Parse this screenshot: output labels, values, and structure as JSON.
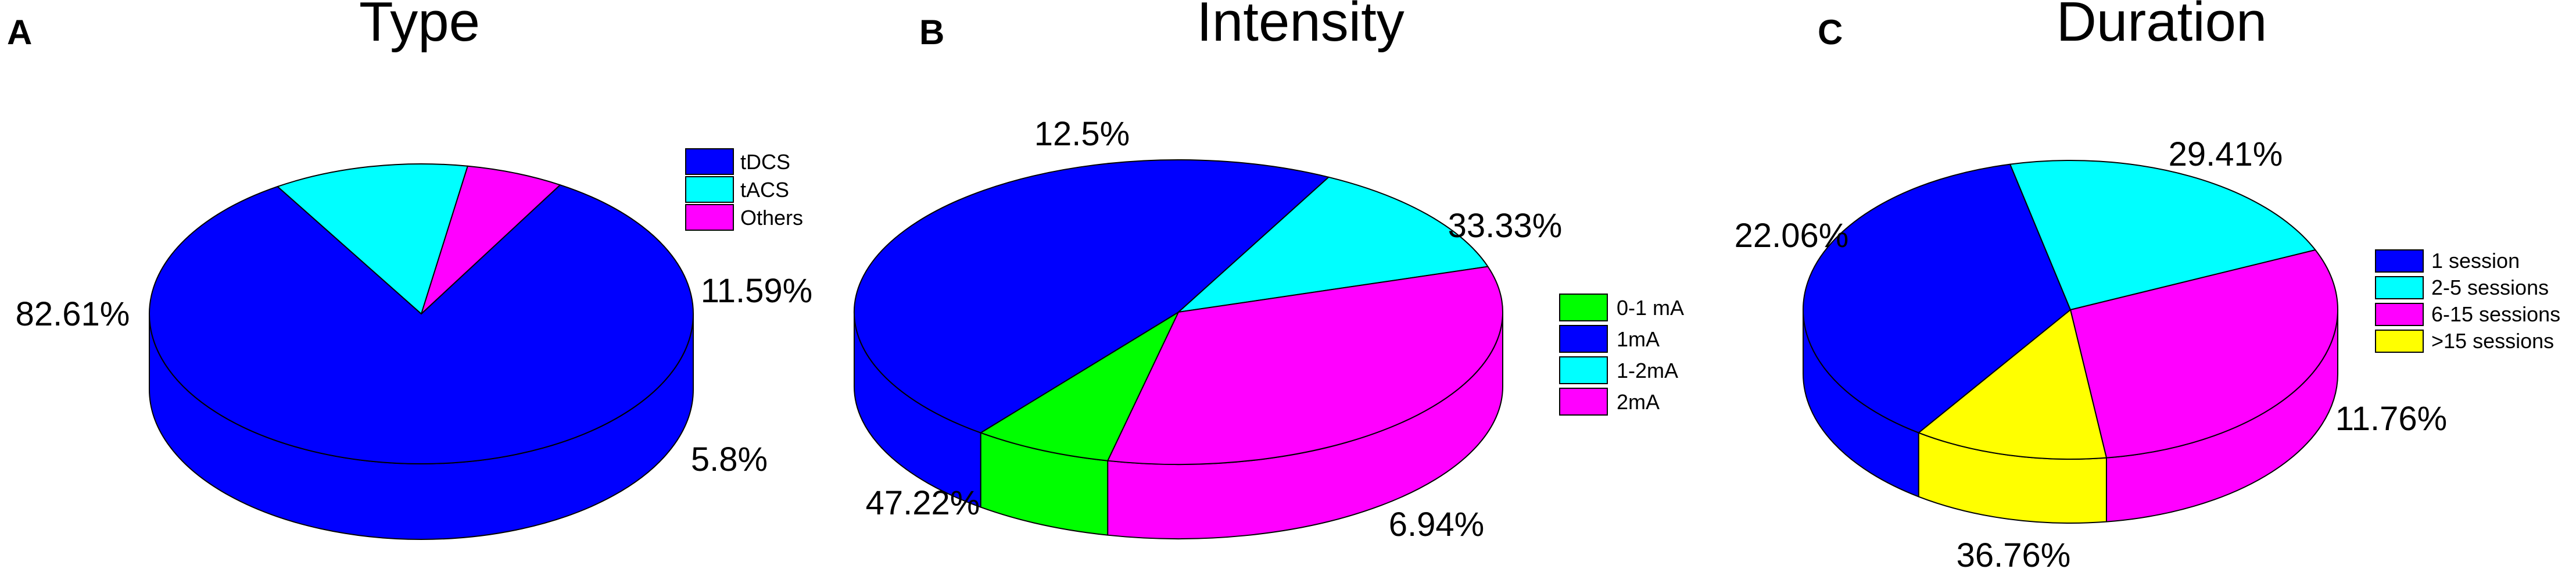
{
  "chart_data": [
    {
      "type": "pie",
      "panel": "A",
      "title": "Type",
      "slices": [
        {
          "label": "tDCS",
          "value": 82.61,
          "value_label": "82.61%",
          "color": "#0000FF"
        },
        {
          "label": "tACS",
          "value": 11.59,
          "value_label": "11.59%",
          "color": "#00FFFF"
        },
        {
          "label": "Others",
          "value": 5.8,
          "value_label": "5.8%",
          "color": "#FF00FF"
        }
      ],
      "legend": [
        "tDCS",
        "tACS",
        "Others"
      ]
    },
    {
      "type": "pie",
      "panel": "B",
      "title": "Intensity",
      "slices": [
        {
          "label": "0-1 mA",
          "value": 6.94,
          "value_label": "6.94%",
          "color": "#00FF00"
        },
        {
          "label": "1mA",
          "value": 47.22,
          "value_label": "47.22%",
          "color": "#0000FF"
        },
        {
          "label": "1-2mA",
          "value": 12.5,
          "value_label": "12.5%",
          "color": "#00FFFF"
        },
        {
          "label": "2mA",
          "value": 33.33,
          "value_label": "33.33%",
          "color": "#FF00FF"
        }
      ],
      "legend": [
        "0-1 mA",
        "1mA",
        "1-2mA",
        "2mA"
      ]
    },
    {
      "type": "pie",
      "panel": "C",
      "title": "Duration",
      "slices": [
        {
          "label": "1 session",
          "value": 36.76,
          "value_label": "36.76%",
          "color": "#0000FF"
        },
        {
          "label": "2-5 sessions",
          "value": 22.06,
          "value_label": "22.06%",
          "color": "#00FFFF"
        },
        {
          "label": "6-15 sessions",
          "value": 29.41,
          "value_label": "29.41%",
          "color": "#FF00FF"
        },
        {
          "label": ">15 sessions",
          "value": 11.76,
          "value_label": "11.76%",
          "color": "#FFFF00"
        }
      ],
      "legend": [
        "1 session",
        "2-5 sessions",
        "6-15 sessions",
        ">15 sessions"
      ]
    }
  ]
}
